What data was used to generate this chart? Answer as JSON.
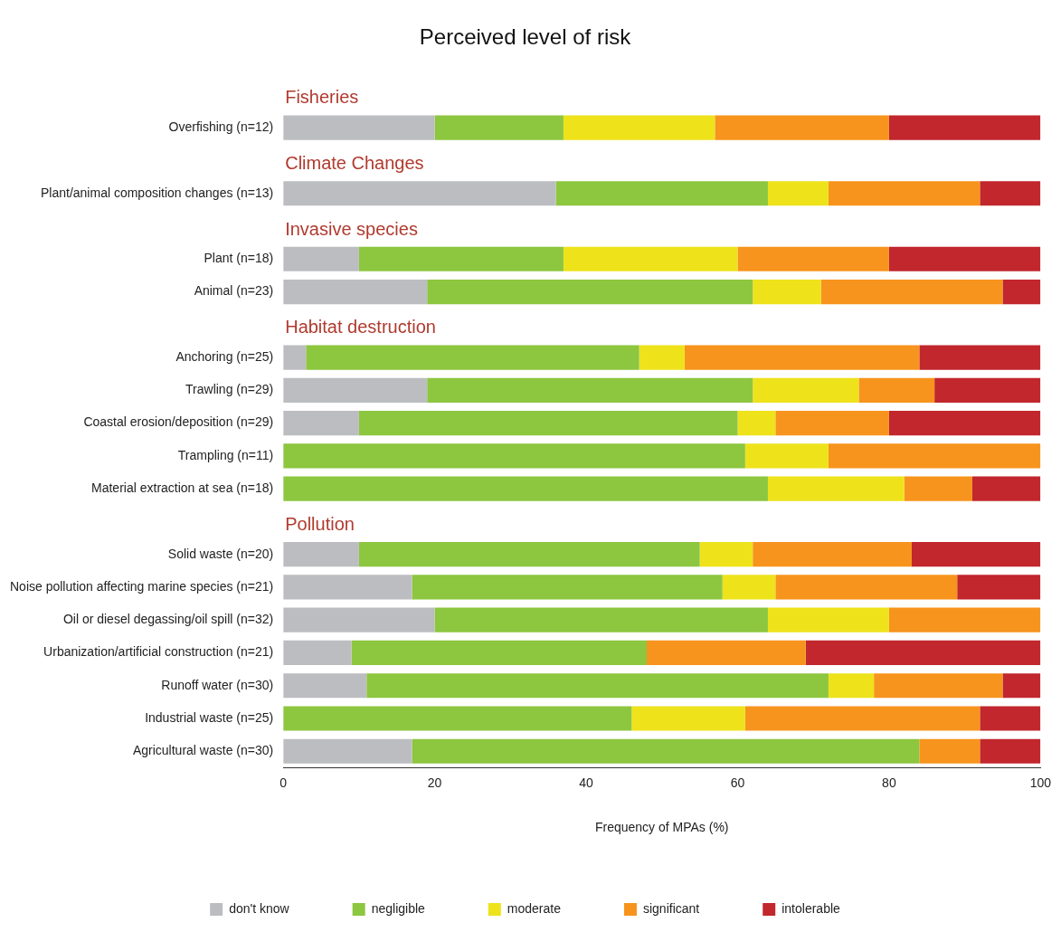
{
  "chart_data": {
    "type": "bar",
    "orientation": "horizontal",
    "stacked": true,
    "title": "Perceived level of risk",
    "xlabel": "Frequency of MPAs (%)",
    "categories": [
      null,
      "Overfishing (n=12)",
      null,
      "Plant/animal composition changes (n=13)",
      null,
      "Plant (n=18)",
      "Animal (n=23)",
      null,
      "Anchoring (n=25)",
      "Trawling (n=29)",
      "Coastal erosion/deposition (n=29)",
      "Trampling (n=11)",
      "Material extraction at sea (n=18)",
      null,
      "Solid waste (n=20)",
      "Noise pollution affecting marine species (n=21)",
      "Oil or diesel degassing/oil spill (n=32)",
      "Urbanization/artificial construction (n=21)",
      "Runoff water (n=30)",
      "Industrial waste (n=25)",
      "Agricultural waste (n=30)"
    ],
    "annotations": [
      "Fisheries",
      "Climate Changes",
      "Invasive species",
      "Habitat destruction",
      "Pollution"
    ],
    "series": [
      {
        "name": "don't know",
        "color": "#bcbdc0",
        "values": [
          null,
          20,
          null,
          36,
          null,
          10,
          19,
          null,
          3,
          19,
          10,
          0,
          0,
          null,
          10,
          17,
          20,
          9,
          11,
          0,
          17
        ]
      },
      {
        "name": "negligible",
        "color": "#8dc63f",
        "values": [
          null,
          17,
          null,
          28,
          null,
          27,
          43,
          null,
          44,
          43,
          50,
          61,
          64,
          null,
          45,
          41,
          44,
          39,
          61,
          46,
          67
        ]
      },
      {
        "name": "moderate",
        "color": "#eee21b",
        "values": [
          null,
          20,
          null,
          8,
          null,
          23,
          9,
          null,
          6,
          14,
          5,
          11,
          18,
          null,
          7,
          7,
          16,
          0,
          6,
          15,
          0
        ]
      },
      {
        "name": "significant",
        "color": "#f7941d",
        "values": [
          null,
          23,
          null,
          20,
          null,
          20,
          24,
          null,
          31,
          10,
          15,
          28,
          9,
          null,
          21,
          24,
          20,
          21,
          17,
          31,
          8
        ]
      },
      {
        "name": "intolerable",
        "color": "#c1272d",
        "values": [
          null,
          20,
          null,
          8,
          null,
          20,
          5,
          null,
          16,
          14,
          20,
          0,
          9,
          null,
          17,
          11,
          0,
          31,
          5,
          8,
          8
        ]
      }
    ],
    "xlim": [
      0,
      100
    ],
    "xticks": [
      0,
      20,
      40,
      60,
      80,
      100
    ],
    "grid": false,
    "legend": "bottom"
  }
}
